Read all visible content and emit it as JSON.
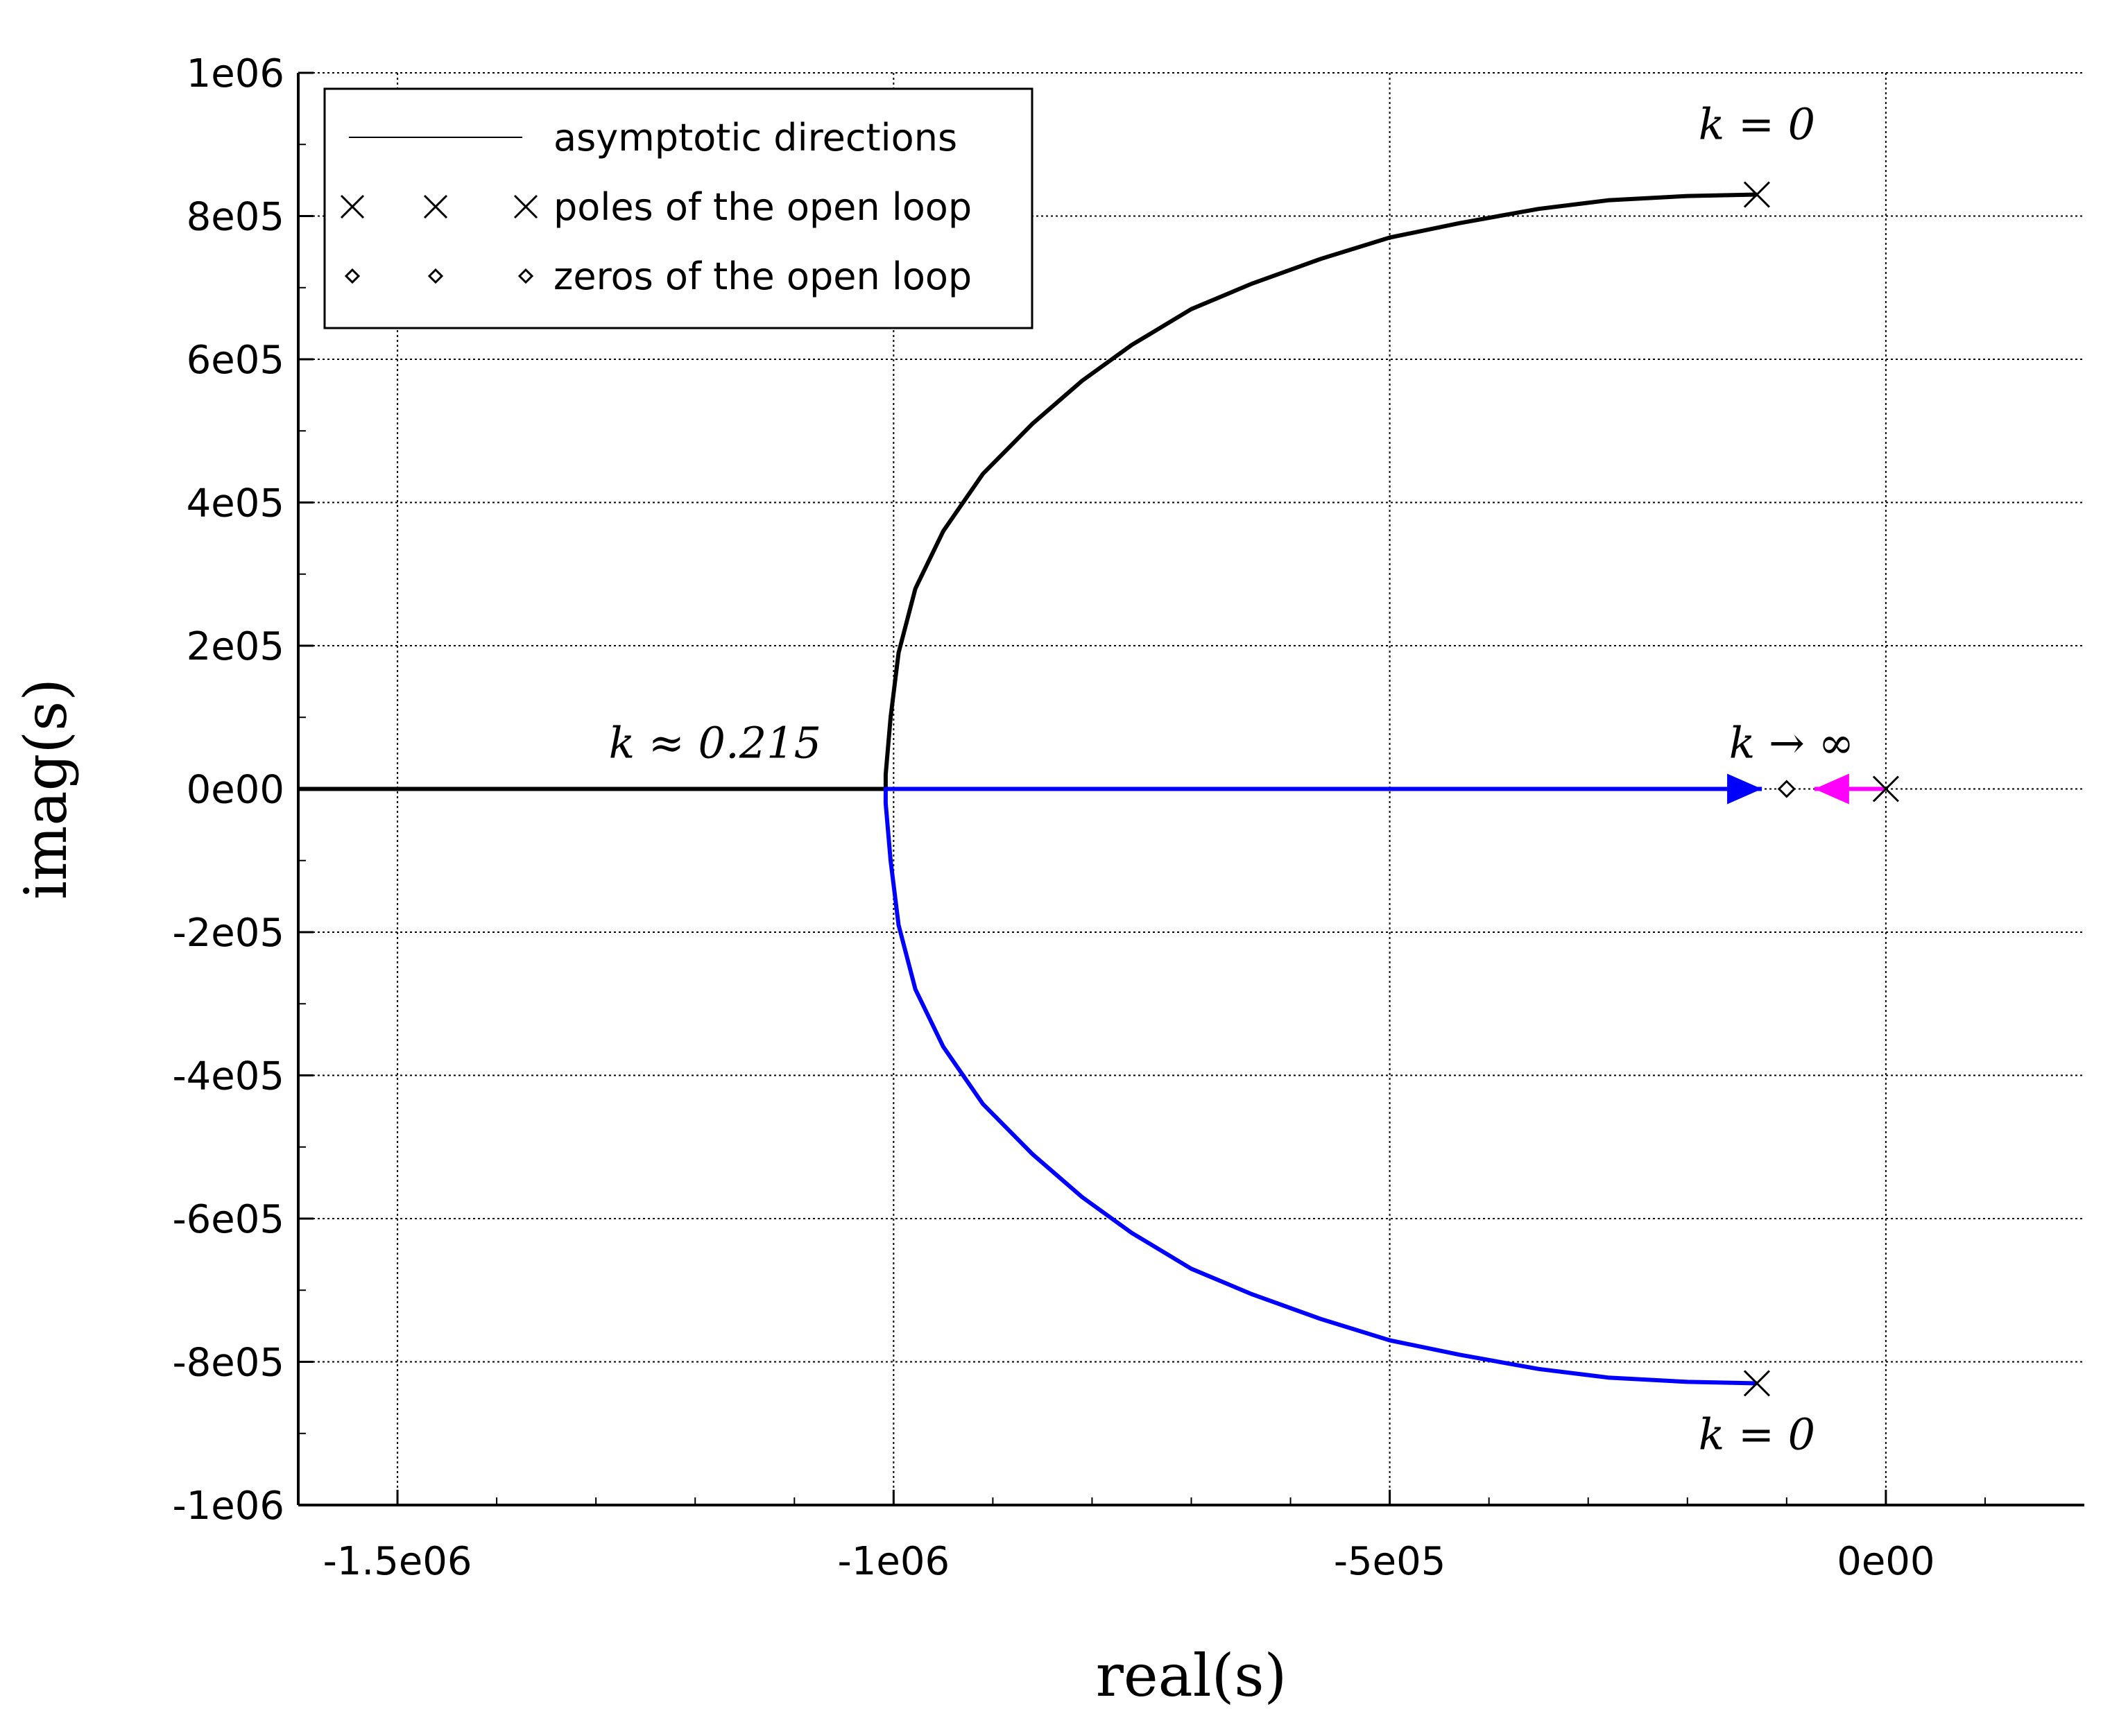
{
  "chart_data": {
    "type": "line",
    "title": "",
    "xlabel": "real(s)",
    "ylabel": "imag(s)",
    "xlim": [
      -1600000,
      200000
    ],
    "ylim": [
      -1000000,
      1000000
    ],
    "grid": true,
    "x_ticks": [
      {
        "value": -1500000,
        "label": "-1.5e06"
      },
      {
        "value": -1000000,
        "label": "-1e06"
      },
      {
        "value": -500000,
        "label": "-5e05"
      },
      {
        "value": 0,
        "label": "0e00"
      }
    ],
    "y_ticks": [
      {
        "value": 1000000,
        "label": "1e06"
      },
      {
        "value": 800000,
        "label": "8e05"
      },
      {
        "value": 600000,
        "label": "6e05"
      },
      {
        "value": 400000,
        "label": "4e05"
      },
      {
        "value": 200000,
        "label": "2e05"
      },
      {
        "value": 0,
        "label": "0e00"
      },
      {
        "value": -200000,
        "label": "-2e05"
      },
      {
        "value": -400000,
        "label": "-4e05"
      },
      {
        "value": -600000,
        "label": "-6e05"
      },
      {
        "value": -800000,
        "label": "-8e05"
      },
      {
        "value": -1000000,
        "label": "-1e06"
      }
    ],
    "legend": {
      "placement": "top-left",
      "entries": [
        {
          "label": "asymptotic directions",
          "marker": "line"
        },
        {
          "label": "poles of the open loop",
          "marker": "x"
        },
        {
          "label": "zeros of the open loop",
          "marker": "diamond"
        }
      ]
    },
    "series": [
      {
        "color": "#000000",
        "points": [
          [
            -130000,
            830000
          ],
          [
            -200000,
            828000
          ],
          [
            -280000,
            822000
          ],
          [
            -350000,
            810000
          ],
          [
            -430000,
            790000
          ],
          [
            -500000,
            770000
          ],
          [
            -570000,
            740000
          ],
          [
            -640000,
            705000
          ],
          [
            -700000,
            670000
          ],
          [
            -760000,
            620000
          ],
          [
            -810000,
            570000
          ],
          [
            -860000,
            510000
          ],
          [
            -910000,
            440000
          ],
          [
            -950000,
            360000
          ],
          [
            -978000,
            280000
          ],
          [
            -995000,
            190000
          ],
          [
            -1003000,
            100000
          ],
          [
            -1008000,
            20000
          ],
          [
            -1008000,
            0
          ],
          [
            -1600000,
            0
          ]
        ]
      },
      {
        "color": "#0000ff",
        "points": [
          [
            -130000,
            -830000
          ],
          [
            -200000,
            -828000
          ],
          [
            -280000,
            -822000
          ],
          [
            -350000,
            -810000
          ],
          [
            -430000,
            -790000
          ],
          [
            -500000,
            -770000
          ],
          [
            -570000,
            -740000
          ],
          [
            -640000,
            -705000
          ],
          [
            -700000,
            -670000
          ],
          [
            -760000,
            -620000
          ],
          [
            -810000,
            -570000
          ],
          [
            -860000,
            -510000
          ],
          [
            -910000,
            -440000
          ],
          [
            -950000,
            -360000
          ],
          [
            -978000,
            -280000
          ],
          [
            -995000,
            -190000
          ],
          [
            -1003000,
            -100000
          ],
          [
            -1008000,
            -20000
          ],
          [
            -1008000,
            0
          ],
          [
            -125000,
            0
          ]
        ],
        "end_arrow": true
      },
      {
        "color": "#ff00ff",
        "points": [
          [
            0,
            0
          ],
          [
            -72000,
            0
          ]
        ],
        "end_arrow": true
      }
    ],
    "poles": [
      [
        -130000,
        830000
      ],
      [
        -130000,
        -830000
      ],
      [
        0,
        0
      ]
    ],
    "zeros": [
      [
        -100000,
        0
      ]
    ],
    "annotations": [
      {
        "text": "k = 0",
        "x": -130000,
        "y": 830000,
        "anchor": "above"
      },
      {
        "text": "k = 0",
        "x": -130000,
        "y": -830000,
        "anchor": "below"
      },
      {
        "text": "k ≈ 0.215",
        "x": -1180000,
        "y": 0,
        "anchor": "above"
      },
      {
        "text": "k → ∞",
        "x": -95000,
        "y": 0,
        "anchor": "above"
      }
    ]
  }
}
